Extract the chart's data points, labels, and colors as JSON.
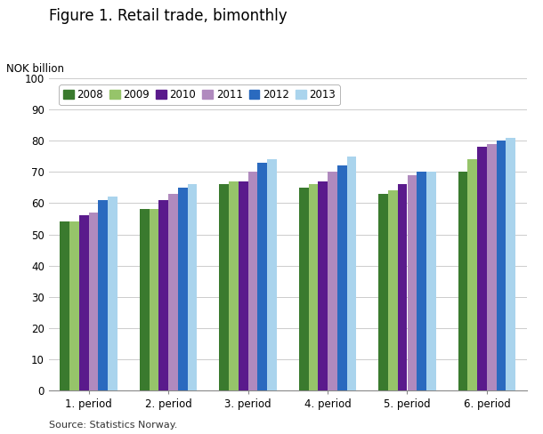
{
  "title": "Figure 1. Retail trade, bimonthly",
  "ylabel": "NOK billion",
  "source": "Source: Statistics Norway.",
  "categories": [
    "1. period",
    "2. period",
    "3. period",
    "4. period",
    "5. period",
    "6. period"
  ],
  "series": [
    {
      "label": "2008",
      "color": "#3a7a2e",
      "values": [
        54,
        58,
        66,
        65,
        63,
        70
      ]
    },
    {
      "label": "2009",
      "color": "#96c46a",
      "values": [
        54,
        58,
        67,
        66,
        64,
        74
      ]
    },
    {
      "label": "2010",
      "color": "#5a1a8c",
      "values": [
        56,
        61,
        67,
        67,
        66,
        78
      ]
    },
    {
      "label": "2011",
      "color": "#b08abe",
      "values": [
        57,
        63,
        70,
        70,
        69,
        79
      ]
    },
    {
      "label": "2012",
      "color": "#2a6abf",
      "values": [
        61,
        65,
        73,
        72,
        70,
        80
      ]
    },
    {
      "label": "2013",
      "color": "#aad4ed",
      "values": [
        62,
        66,
        74,
        75,
        70,
        81
      ]
    }
  ],
  "ylim": [
    0,
    100
  ],
  "yticks": [
    0,
    10,
    20,
    30,
    40,
    50,
    60,
    70,
    80,
    90,
    100
  ],
  "background_color": "#ffffff",
  "grid_color": "#cccccc",
  "title_fontsize": 12,
  "label_fontsize": 8.5,
  "tick_fontsize": 8.5,
  "legend_fontsize": 8.5,
  "source_fontsize": 8
}
